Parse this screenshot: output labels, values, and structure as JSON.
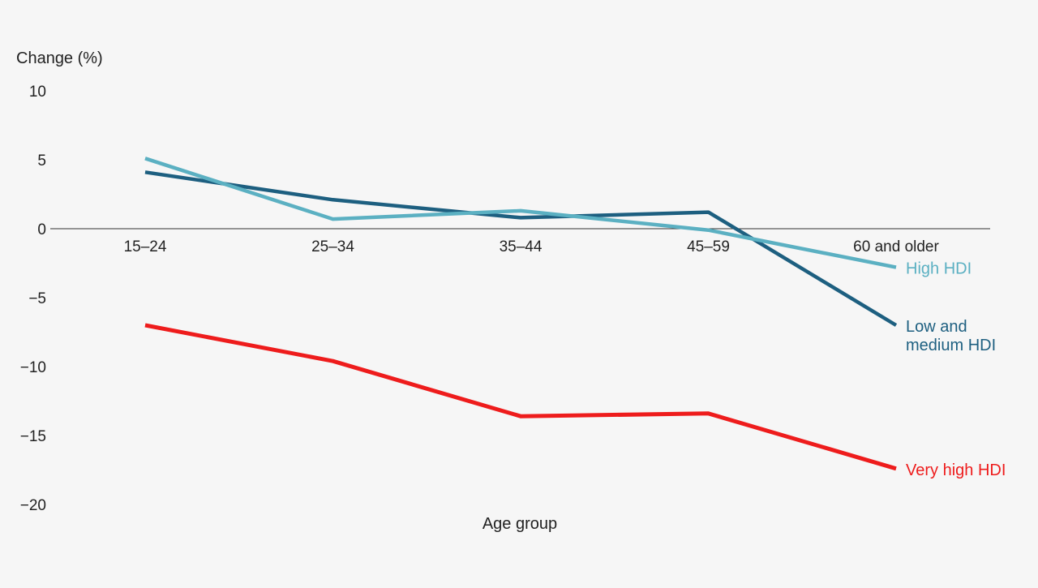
{
  "chart_data": {
    "type": "line",
    "title": "",
    "xlabel": "Age group",
    "ylabel": "Change (%)",
    "categories": [
      "15–24",
      "25–34",
      "35–44",
      "45–59",
      "60 and older"
    ],
    "ylim": [
      -20,
      10
    ],
    "yticks": [
      10,
      5,
      0,
      -5,
      -10,
      -15,
      -20
    ],
    "ytick_labels": [
      "10",
      "5",
      "0",
      "−5",
      "−10",
      "−15",
      "−20"
    ],
    "grid": false,
    "legend": "inline-right",
    "series": [
      {
        "name": "High HDI",
        "label_lines": [
          "High HDI"
        ],
        "color": "#5bb0c2",
        "values": [
          5.1,
          0.7,
          1.3,
          -0.1,
          -2.8
        ]
      },
      {
        "name": "Low and medium HDI",
        "label_lines": [
          "Low and",
          "medium HDI"
        ],
        "color": "#1d5f80",
        "values": [
          4.1,
          2.1,
          0.8,
          1.2,
          -7.0
        ]
      },
      {
        "name": "Very high HDI",
        "label_lines": [
          "Very high HDI"
        ],
        "color": "#ee1c1c",
        "values": [
          -7.0,
          -9.6,
          -13.6,
          -13.4,
          -17.4
        ]
      }
    ]
  }
}
